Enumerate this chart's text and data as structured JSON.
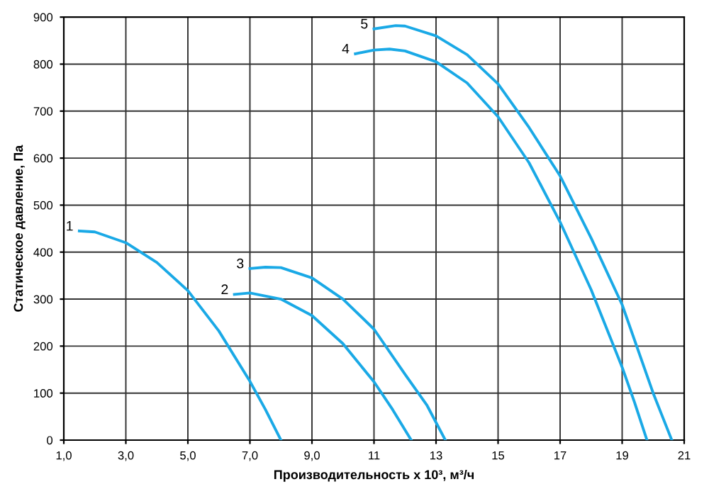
{
  "chart_data": {
    "type": "line",
    "xlabel": "Производительность x 10³, м³/ч",
    "ylabel": "Статическое давление, Па",
    "series": [
      {
        "color": "#1aa9e6",
        "x": [
          1.5,
          2,
          3,
          4,
          5,
          6,
          7,
          7.5,
          8
        ],
        "values": [
          445,
          443,
          420,
          378,
          318,
          232,
          125,
          65,
          0
        ]
      },
      {
        "color": "#1aa9e6",
        "x": [
          6.5,
          7,
          8,
          9,
          10,
          11,
          11.6,
          12.2
        ],
        "values": [
          310,
          313,
          300,
          265,
          205,
          124,
          65,
          0
        ]
      },
      {
        "color": "#1aa9e6",
        "x": [
          7,
          7.5,
          8,
          9,
          10,
          11,
          12,
          12.7,
          13.3
        ],
        "values": [
          365,
          368,
          367,
          345,
          300,
          236,
          140,
          75,
          0
        ]
      },
      {
        "color": "#1aa9e6",
        "x": [
          10.4,
          11,
          11.5,
          12,
          13,
          14,
          15,
          16,
          17,
          18,
          19,
          19.4,
          19.8
        ],
        "values": [
          822,
          830,
          832,
          828,
          805,
          760,
          688,
          590,
          464,
          320,
          155,
          80,
          0
        ]
      },
      {
        "color": "#1aa9e6",
        "x": [
          11,
          11.7,
          12,
          13,
          14,
          15,
          16,
          17,
          18,
          19,
          20,
          20.3,
          20.6
        ],
        "values": [
          875,
          882,
          881,
          860,
          820,
          758,
          665,
          562,
          430,
          288,
          100,
          50,
          0
        ]
      }
    ],
    "annotations": [
      {
        "text": "1",
        "x": 1.5,
        "y": 445
      },
      {
        "text": "2",
        "x": 6.5,
        "y": 310
      },
      {
        "text": "3",
        "x": 7,
        "y": 365
      },
      {
        "text": "4",
        "x": 10.4,
        "y": 822
      },
      {
        "text": "5",
        "x": 11,
        "y": 875
      }
    ],
    "xlim": [
      1,
      21
    ],
    "ylim": [
      0,
      900
    ],
    "xticks": [
      {
        "value": 1,
        "label": "1,0"
      },
      {
        "value": 3,
        "label": "3,0"
      },
      {
        "value": 5,
        "label": "5,0"
      },
      {
        "value": 7,
        "label": "7,0"
      },
      {
        "value": 9,
        "label": "9,0"
      },
      11,
      13,
      15,
      17,
      19,
      21
    ],
    "yticks": [
      0,
      100,
      200,
      300,
      400,
      500,
      600,
      700,
      800,
      900
    ],
    "grid": true,
    "marker": "none",
    "line_style": "solid"
  }
}
